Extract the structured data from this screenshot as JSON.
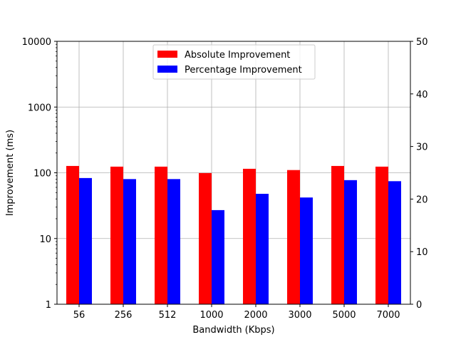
{
  "chart_data": {
    "type": "bar",
    "xlabel": "Bandwidth (Kbps)",
    "ylabel": "Improvement (ms)",
    "y2label": "",
    "categories": [
      "56",
      "256",
      "512",
      "1000",
      "2000",
      "3000",
      "5000",
      "7000"
    ],
    "y_scale": "log",
    "ylim": [
      1,
      10000
    ],
    "y_ticks": [
      1,
      10,
      100,
      1000,
      10000
    ],
    "y_tick_labels": [
      "1",
      "10",
      "100",
      "1000",
      "10000"
    ],
    "y2_scale": "linear",
    "y2lim": [
      0,
      50
    ],
    "y2_ticks": [
      0,
      10,
      20,
      30,
      40,
      50
    ],
    "y2_tick_labels": [
      "0",
      "10",
      "20",
      "30",
      "40",
      "50"
    ],
    "grid": true,
    "legend_position": "top-center",
    "series": [
      {
        "name": "Absolute Improvement",
        "axis": "left",
        "color": "#ff0000",
        "values": [
          127,
          124,
          124,
          99,
          115,
          110,
          127,
          124
        ]
      },
      {
        "name": "Percentage Improvement",
        "axis": "right",
        "color": "#0000ff",
        "values": [
          24.0,
          23.8,
          23.8,
          17.9,
          21.0,
          20.3,
          23.6,
          23.4
        ]
      }
    ]
  }
}
